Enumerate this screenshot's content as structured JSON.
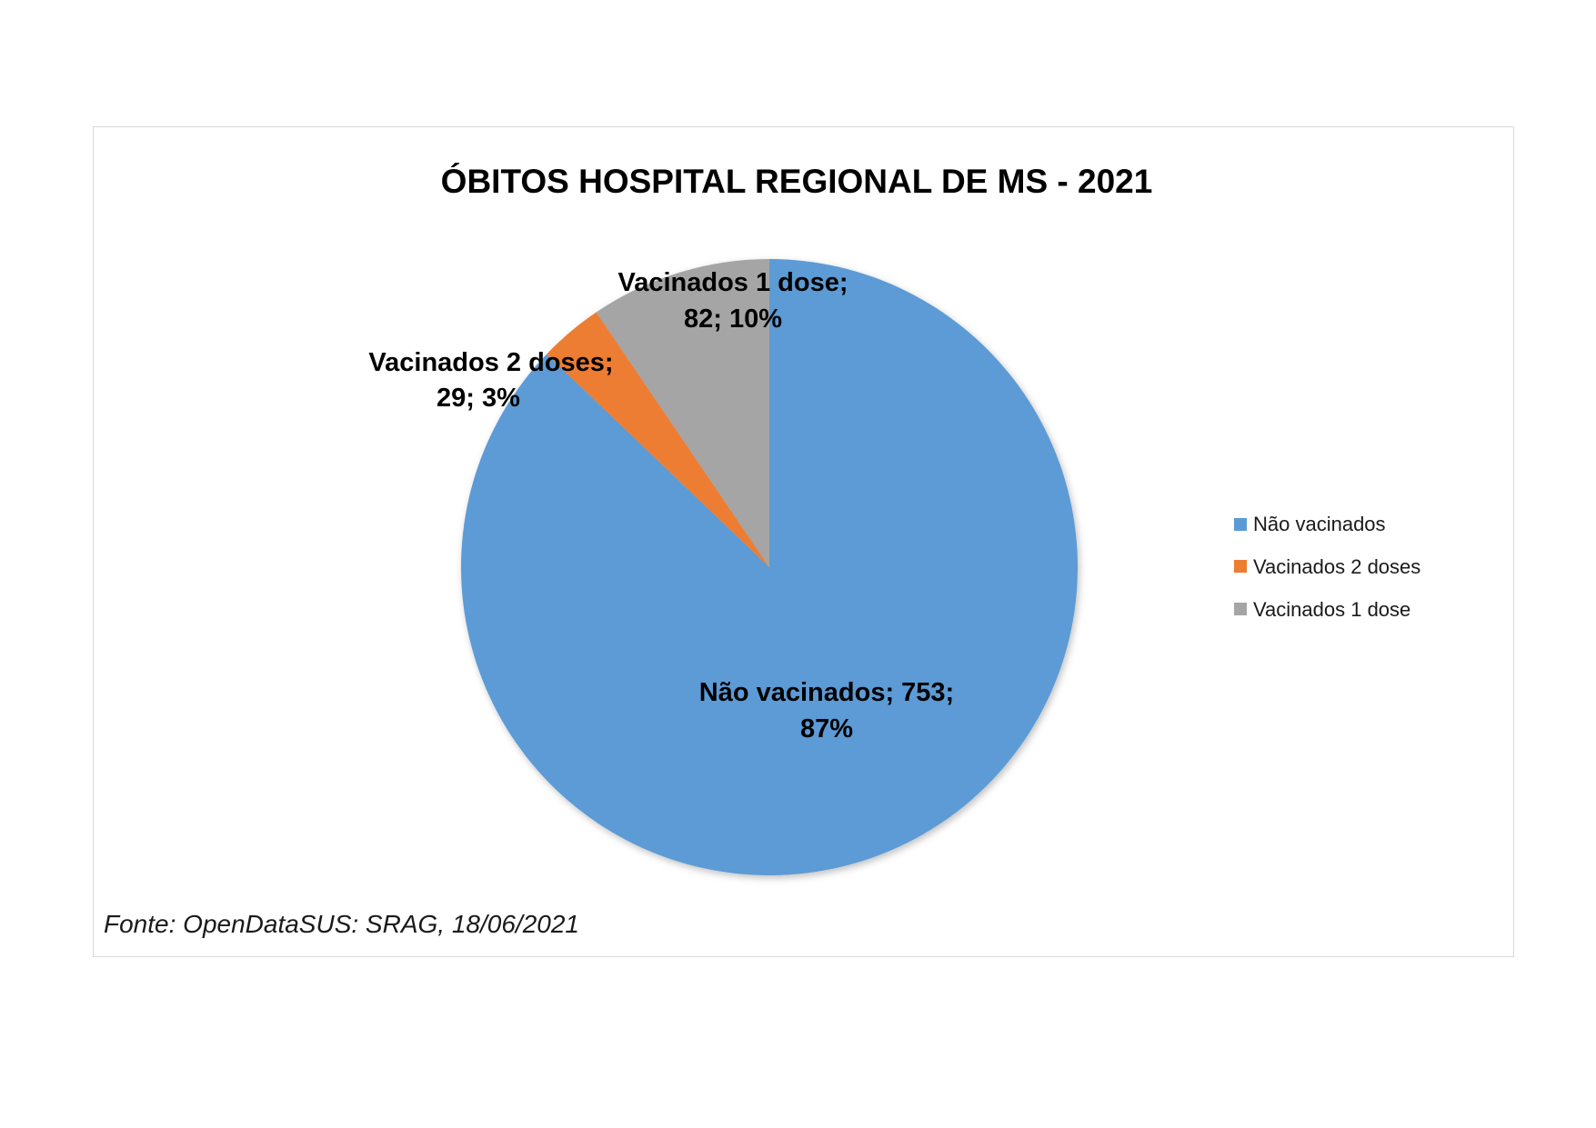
{
  "chart_data": {
    "type": "pie",
    "title": "ÓBITOS HOSPITAL REGIONAL DE MS - 2021",
    "categories": [
      "Não vacinados",
      "Vacinados 2 doses",
      "Vacinados 1 dose"
    ],
    "values": [
      753,
      29,
      82
    ],
    "percentages": [
      "87%",
      "3%",
      "10%"
    ],
    "colors": [
      "#5B9BD5",
      "#ED7D31",
      "#A5A5A5"
    ],
    "data_labels": [
      {
        "line1": "Não vacinados; 753;",
        "line2": "87%"
      },
      {
        "line1": "Vacinados 2 doses;",
        "line2": "29; 3%"
      },
      {
        "line1": "Vacinados 1 dose;",
        "line2": "82; 10%"
      }
    ],
    "legend_position": "right",
    "source_note": "Fonte: OpenDataSUS: SRAG, 18/06/2021"
  }
}
